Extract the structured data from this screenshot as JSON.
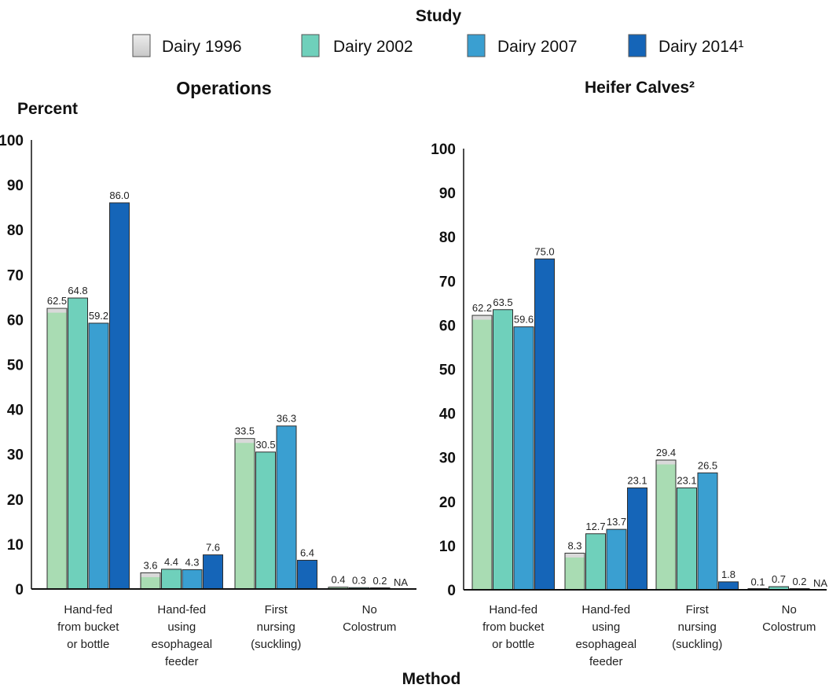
{
  "legend": {
    "title": "Study",
    "entries": [
      {
        "label": "Dairy 1996",
        "color": "#d6d6d6"
      },
      {
        "label": "Dairy 2002",
        "color": "#6fd0bb"
      },
      {
        "label": "Dairy 2007",
        "color": "#3a9fd1"
      },
      {
        "label": "Dairy 2014¹",
        "color": "#1565b8"
      }
    ]
  },
  "x_axis_title": "Method",
  "colors": {
    "bar_1996": "#a9dcb3",
    "bar_2002": "#6fd0bb",
    "bar_2007": "#3a9fd1",
    "bar_2014": "#1565b8",
    "bar_edge": "#2d2d2d",
    "axis": "#111111"
  },
  "chart_data": [
    {
      "type": "bar",
      "title": "Operations",
      "ylabel": "Percent",
      "xlabel": "Method",
      "ylim": [
        0,
        100
      ],
      "yticks": [
        0,
        10,
        20,
        30,
        40,
        50,
        60,
        70,
        80,
        90,
        100
      ],
      "categories": [
        [
          "Hand-fed",
          "from bucket",
          "or bottle"
        ],
        [
          "Hand-fed",
          "using",
          "esophageal",
          "feeder"
        ],
        [
          "First",
          "nursing",
          "(suckling)"
        ],
        [
          "No",
          "Colostrum"
        ]
      ],
      "series": [
        {
          "name": "Dairy 1996",
          "values": [
            62.5,
            3.6,
            33.5,
            0.4
          ],
          "labels": [
            "62.5",
            "3.6",
            "33.5",
            "0.4"
          ]
        },
        {
          "name": "Dairy 2002",
          "values": [
            64.8,
            4.4,
            30.5,
            0.3
          ],
          "labels": [
            "64.8",
            "4.4",
            "30.5",
            "0.3"
          ]
        },
        {
          "name": "Dairy 2007",
          "values": [
            59.2,
            4.3,
            36.3,
            0.2
          ],
          "labels": [
            "59.2",
            "4.3",
            "36.3",
            "0.2"
          ]
        },
        {
          "name": "Dairy 2014¹",
          "values": [
            86.0,
            7.6,
            6.4,
            null
          ],
          "labels": [
            "86.0",
            "7.6",
            "6.4",
            "NA"
          ]
        }
      ]
    },
    {
      "type": "bar",
      "title": "Heifer Calves²",
      "ylabel": "",
      "xlabel": "Method",
      "ylim": [
        0,
        100
      ],
      "yticks": [
        0,
        10,
        20,
        30,
        40,
        50,
        60,
        70,
        80,
        90,
        100
      ],
      "categories": [
        [
          "Hand-fed",
          "from bucket",
          "or bottle"
        ],
        [
          "Hand-fed",
          "using",
          "esophageal",
          "feeder"
        ],
        [
          "First",
          "nursing",
          "(suckling)"
        ],
        [
          "No",
          "Colostrum"
        ]
      ],
      "series": [
        {
          "name": "Dairy 1996",
          "values": [
            62.2,
            8.3,
            29.4,
            0.1
          ],
          "labels": [
            "62.2",
            "8.3",
            "29.4",
            "0.1"
          ]
        },
        {
          "name": "Dairy 2002",
          "values": [
            63.5,
            12.7,
            23.1,
            0.7
          ],
          "labels": [
            "63.5",
            "12.7",
            "23.1",
            "0.7"
          ]
        },
        {
          "name": "Dairy 2007",
          "values": [
            59.6,
            13.7,
            26.5,
            0.2
          ],
          "labels": [
            "59.6",
            "13.7",
            "26.5",
            "0.2"
          ]
        },
        {
          "name": "Dairy 2014¹",
          "values": [
            75.0,
            23.1,
            1.8,
            null
          ],
          "labels": [
            "75.0",
            "23.1",
            "1.8",
            "NA"
          ]
        }
      ]
    }
  ]
}
